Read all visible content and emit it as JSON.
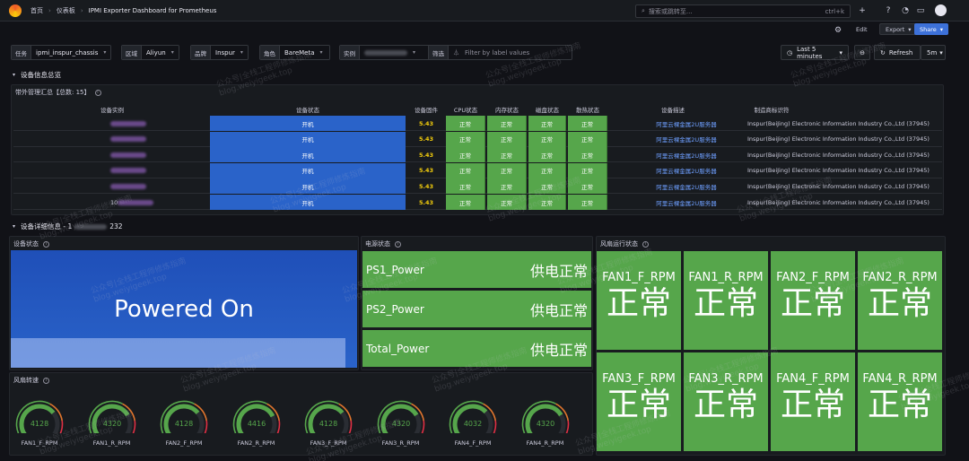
{
  "topbar": {
    "breadcrumbs": [
      "首页",
      "仪表板",
      "IPMI Exporter Dashboard for Prometheus"
    ],
    "search_placeholder": "搜索或跳转至...",
    "search_shortcut": "ctrl+k",
    "plus": "+"
  },
  "toolbar": {
    "edit": "Edit",
    "export": "Export",
    "share": "Share"
  },
  "variables": [
    {
      "label": "任务",
      "value": "ipmi_inspur_chassis"
    },
    {
      "label": "区域",
      "value": "Aliyun"
    },
    {
      "label": "品牌",
      "value": "Inspur"
    },
    {
      "label": "角色",
      "value": "BareMeta"
    },
    {
      "label": "实例",
      "value": ""
    },
    {
      "label": "筛选",
      "value": "Filter by label values"
    }
  ],
  "time": {
    "range": "Last 5 minutes",
    "refresh": "Refresh",
    "interval": "5m"
  },
  "rows": {
    "overview": "设备信息总览",
    "detail_prefix": "设备详细信息 - 1",
    "detail_suffix": "232"
  },
  "table": {
    "title": "带外管理汇总【总数: 15】",
    "headers": [
      "设备实例",
      "设备状态",
      "设备固件",
      "CPU状态",
      "内存状态",
      "磁盘状态",
      "散热状态",
      "设备描述",
      "制造商标识符"
    ],
    "rows": [
      {
        "instance": "",
        "status": "开机",
        "fw": "5.43",
        "cpu": "正常",
        "mem": "正常",
        "disk": "正常",
        "fan": "正常",
        "desc": "阿里云裸金属2U服务器",
        "mfr": "Inspur(BeiJing) Electronic Information Industry Co.,Ltd (37945)"
      },
      {
        "instance": "",
        "status": "开机",
        "fw": "5.43",
        "cpu": "正常",
        "mem": "正常",
        "disk": "正常",
        "fan": "正常",
        "desc": "阿里云裸金属2U服务器",
        "mfr": "Inspur(BeiJing) Electronic Information Industry Co.,Ltd (37945)"
      },
      {
        "instance": "",
        "status": "开机",
        "fw": "5.43",
        "cpu": "正常",
        "mem": "正常",
        "disk": "正常",
        "fan": "正常",
        "desc": "阿里云裸金属2U服务器",
        "mfr": "Inspur(BeiJing) Electronic Information Industry Co.,Ltd (37945)"
      },
      {
        "instance": "",
        "status": "开机",
        "fw": "5.43",
        "cpu": "正常",
        "mem": "正常",
        "disk": "正常",
        "fan": "正常",
        "desc": "阿里云裸金属2U服务器",
        "mfr": "Inspur(BeiJing) Electronic Information Industry Co.,Ltd (37945)"
      },
      {
        "instance": "",
        "status": "开机",
        "fw": "5.43",
        "cpu": "正常",
        "mem": "正常",
        "disk": "正常",
        "fan": "正常",
        "desc": "阿里云裸金属2U服务器",
        "mfr": "Inspur(BeiJing) Electronic Information Industry Co.,Ltd (37945)"
      },
      {
        "instance": "10",
        "status": "开机",
        "fw": "5.43",
        "cpu": "正常",
        "mem": "正常",
        "disk": "正常",
        "fan": "正常",
        "desc": "阿里云裸金属2U服务器",
        "mfr": "Inspur(BeiJing) Electronic Information Industry Co.,Ltd (37945)"
      }
    ]
  },
  "panels": {
    "device_status": {
      "title": "设备状态",
      "value": "Powered On"
    },
    "power_status": {
      "title": "电源状态",
      "items": [
        {
          "name": "PS1_Power",
          "value": "供电正常"
        },
        {
          "name": "PS2_Power",
          "value": "供电正常"
        },
        {
          "name": "Total_Power",
          "value": "供电正常"
        }
      ]
    },
    "fan_status": {
      "title": "风扇运行状态",
      "items": [
        {
          "name": "FAN1_F_RPM",
          "value": "正常"
        },
        {
          "name": "FAN1_R_RPM",
          "value": "正常"
        },
        {
          "name": "FAN2_F_RPM",
          "value": "正常"
        },
        {
          "name": "FAN2_R_RPM",
          "value": "正常"
        },
        {
          "name": "FAN3_F_RPM",
          "value": "正常"
        },
        {
          "name": "FAN3_R_RPM",
          "value": "正常"
        },
        {
          "name": "FAN4_F_RPM",
          "value": "正常"
        },
        {
          "name": "FAN4_R_RPM",
          "value": "正常"
        }
      ]
    },
    "fan_speed": {
      "title": "风扇转速",
      "max": 6000,
      "gauges": [
        {
          "name": "FAN1_F_RPM",
          "value": 4128
        },
        {
          "name": "FAN1_R_RPM",
          "value": 4320
        },
        {
          "name": "FAN2_F_RPM",
          "value": 4128
        },
        {
          "name": "FAN2_R_RPM",
          "value": 4416
        },
        {
          "name": "FAN3_F_RPM",
          "value": 4128
        },
        {
          "name": "FAN3_R_RPM",
          "value": 4320
        },
        {
          "name": "FAN4_F_RPM",
          "value": 4032
        },
        {
          "name": "FAN4_R_RPM",
          "value": 4320
        }
      ]
    }
  },
  "watermark": {
    "line1": "公众号|全栈工程师修炼指南",
    "line2": "blog.weiyigeek.top"
  },
  "colors": {
    "green": "#56a64b",
    "blue": "#2a63c9",
    "firmware": "#f2cc0c",
    "link": "#6e9fff"
  }
}
